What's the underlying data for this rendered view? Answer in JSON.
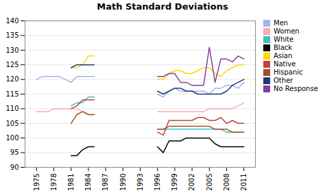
{
  "chart_data": {
    "type": "line",
    "title": "Math Standard Deviations",
    "x": [
      1975,
      1976,
      1977,
      1978,
      1979,
      1980,
      1981,
      1982,
      1983,
      1984,
      1985,
      1986,
      1987,
      1988,
      1989,
      1990,
      1991,
      1992,
      1993,
      1994,
      1995,
      1996,
      1997,
      1998,
      1999,
      2000,
      2001,
      2002,
      2003,
      2004,
      2005,
      2006,
      2007,
      2008,
      2009,
      2010,
      2011
    ],
    "series": [
      {
        "name": "Men",
        "color": "#9EB6E8",
        "values": [
          120,
          121,
          121,
          121,
          121,
          120,
          119,
          121,
          121,
          121,
          121,
          null,
          null,
          null,
          null,
          null,
          null,
          null,
          null,
          null,
          null,
          115,
          114,
          116,
          117,
          116,
          116,
          116,
          116,
          116,
          115,
          117,
          117,
          118,
          118,
          117,
          119
        ]
      },
      {
        "name": "Women",
        "color": "#FFAAAA",
        "values": [
          109,
          109,
          109,
          110,
          110,
          110,
          110,
          110,
          109,
          108,
          108,
          null,
          null,
          null,
          null,
          null,
          null,
          null,
          null,
          null,
          null,
          109,
          109,
          109,
          109,
          109,
          109,
          109,
          109,
          109,
          110,
          110,
          110,
          110,
          110,
          111,
          112
        ]
      },
      {
        "name": "White",
        "color": "#40C0C0",
        "values": [
          null,
          null,
          null,
          null,
          null,
          null,
          111,
          112,
          112,
          114,
          114,
          null,
          null,
          null,
          null,
          null,
          null,
          null,
          null,
          null,
          null,
          103,
          103,
          103,
          103,
          103,
          103,
          103,
          103,
          103,
          103,
          103,
          103,
          102,
          102,
          102,
          102
        ]
      },
      {
        "name": "Black",
        "color": "#000000",
        "values": [
          null,
          null,
          null,
          null,
          null,
          null,
          94,
          94,
          96,
          97,
          97,
          null,
          null,
          null,
          null,
          null,
          null,
          null,
          null,
          null,
          null,
          97,
          95,
          99,
          99,
          99,
          100,
          100,
          100,
          100,
          100,
          98,
          97,
          97,
          97,
          97,
          97
        ]
      },
      {
        "name": "Asian",
        "color": "#FFD700",
        "values": [
          null,
          null,
          null,
          null,
          null,
          null,
          124,
          124,
          125,
          128,
          128,
          null,
          null,
          null,
          null,
          null,
          null,
          null,
          null,
          null,
          null,
          120,
          120,
          122,
          123,
          123,
          122,
          122,
          123,
          124,
          124,
          122,
          121,
          123,
          124,
          125,
          125
        ]
      },
      {
        "name": "Native",
        "color": "#C04040",
        "values": [
          null,
          null,
          null,
          null,
          null,
          null,
          110,
          111,
          113,
          113,
          113,
          null,
          null,
          null,
          null,
          null,
          null,
          null,
          null,
          null,
          null,
          102,
          101,
          106,
          106,
          106,
          106,
          106,
          107,
          107,
          106,
          106,
          107,
          105,
          106,
          105,
          105
        ]
      },
      {
        "name": "Hispanic",
        "color": "#A05020",
        "values": [
          null,
          null,
          null,
          null,
          null,
          null,
          105,
          108,
          109,
          108,
          108,
          null,
          null,
          null,
          null,
          null,
          null,
          null,
          null,
          null,
          null,
          103,
          103,
          104,
          104,
          104,
          104,
          104,
          104,
          104,
          104,
          103,
          103,
          103,
          102,
          102,
          102
        ]
      },
      {
        "name": "Other",
        "color": "#1C3A7A",
        "values": [
          null,
          null,
          null,
          null,
          null,
          null,
          124,
          125,
          125,
          125,
          125,
          null,
          null,
          null,
          null,
          null,
          null,
          null,
          null,
          null,
          null,
          116,
          115,
          116,
          117,
          117,
          116,
          116,
          115,
          115,
          115,
          115,
          115,
          116,
          118,
          119,
          120
        ]
      },
      {
        "name": "No Response",
        "color": "#8040A0",
        "values": [
          null,
          null,
          null,
          null,
          null,
          null,
          null,
          null,
          null,
          null,
          null,
          null,
          null,
          null,
          null,
          null,
          null,
          null,
          null,
          null,
          null,
          121,
          121,
          122,
          122,
          119,
          119,
          118,
          118,
          118,
          131,
          119,
          127,
          127,
          126,
          128,
          127
        ]
      }
    ],
    "xlim": [
      1973,
      2013
    ],
    "xticks": [
      1975,
      1978,
      1981,
      1984,
      1987,
      1990,
      1993,
      1996,
      1999,
      2002,
      2005,
      2008,
      2011
    ],
    "ylim": [
      90,
      140
    ],
    "yticks": [
      90,
      95,
      100,
      105,
      110,
      115,
      120,
      125,
      130,
      135,
      140
    ],
    "grid": true,
    "legend": "right"
  }
}
